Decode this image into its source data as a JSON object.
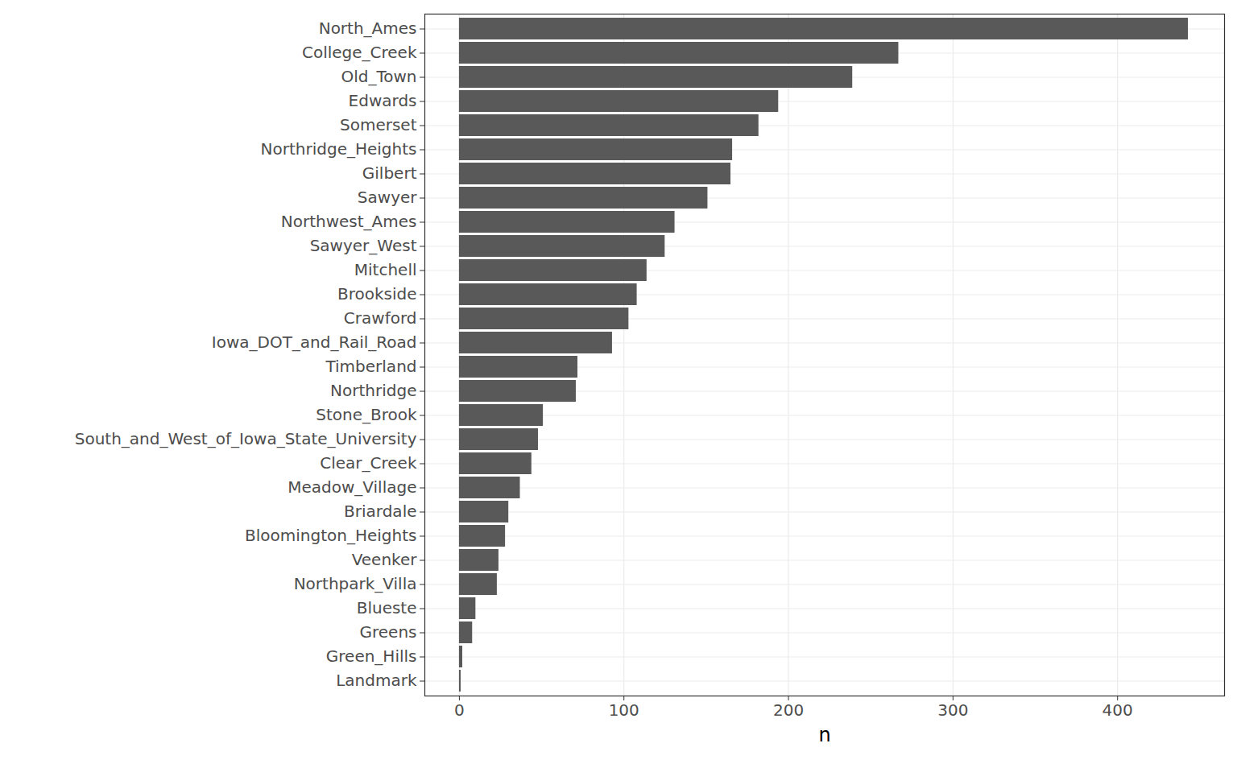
{
  "chart_data": {
    "type": "bar",
    "orientation": "horizontal",
    "x_label": "n",
    "categories": [
      "North_Ames",
      "College_Creek",
      "Old_Town",
      "Edwards",
      "Somerset",
      "Northridge_Heights",
      "Gilbert",
      "Sawyer",
      "Northwest_Ames",
      "Sawyer_West",
      "Mitchell",
      "Brookside",
      "Crawford",
      "Iowa_DOT_and_Rail_Road",
      "Timberland",
      "Northridge",
      "Stone_Brook",
      "South_and_West_of_Iowa_State_University",
      "Clear_Creek",
      "Meadow_Village",
      "Briardale",
      "Bloomington_Heights",
      "Veenker",
      "Northpark_Villa",
      "Blueste",
      "Greens",
      "Green_Hills",
      "Landmark"
    ],
    "values": [
      443,
      267,
      239,
      194,
      182,
      166,
      165,
      151,
      131,
      125,
      114,
      108,
      103,
      93,
      72,
      71,
      51,
      48,
      44,
      37,
      30,
      28,
      24,
      23,
      10,
      8,
      2,
      1
    ],
    "color": "#595959",
    "xlim": [
      -21,
      465
    ],
    "xticks": [
      0,
      100,
      200,
      300,
      400
    ],
    "grid": true
  }
}
